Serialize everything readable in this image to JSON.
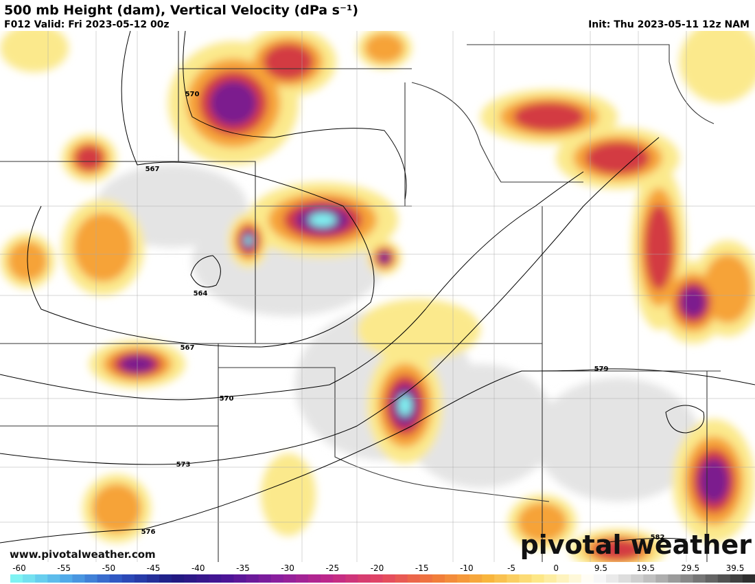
{
  "header": {
    "title": "500 mb Height (dam), Vertical Velocity (dPa s⁻¹)",
    "valid": "F012 Valid: Fri 2023-05-12 00z",
    "init": "Init: Thu 2023-05-11 12z NAM"
  },
  "map": {
    "contour_labels": [
      570,
      567,
      564,
      567,
      570,
      573,
      576,
      579,
      582
    ]
  },
  "footer": {
    "website": "www.pivotalweather.com",
    "logo": "pivotal weather"
  },
  "colorbar": {
    "ticks": [
      -60,
      -55,
      -50,
      -45,
      -40,
      -35,
      -30,
      -25,
      -20,
      -15,
      -10,
      -5,
      0,
      9.5,
      19.5,
      29.5,
      39.5
    ]
  }
}
